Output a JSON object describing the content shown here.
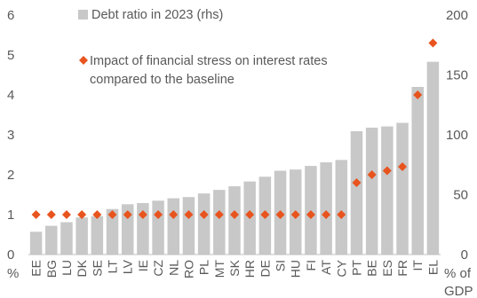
{
  "chart_data": {
    "type": "bar",
    "categories": [
      "EE",
      "BG",
      "LU",
      "DK",
      "SE",
      "LT",
      "LV",
      "IE",
      "CZ",
      "NL",
      "RO",
      "PL",
      "MT",
      "SK",
      "HR",
      "DE",
      "SI",
      "HU",
      "FI",
      "AT",
      "CY",
      "PT",
      "BE",
      "ES",
      "FR",
      "IT",
      "EL"
    ],
    "series": [
      {
        "name": "Debt ratio in 2023 (rhs)",
        "type": "bar",
        "axis": "right",
        "color": "#c8c8c8",
        "values": [
          19,
          24,
          27,
          31,
          32,
          38,
          42,
          43,
          45,
          47,
          48,
          51,
          54,
          57,
          61,
          65,
          70,
          71,
          74,
          77,
          79,
          103,
          106,
          107,
          110,
          140,
          161
        ]
      },
      {
        "name": "Impact of financial stress on interest rates compared to the baseline",
        "type": "scatter",
        "marker": "diamond",
        "axis": "left",
        "color": "#e8541e",
        "values": [
          1.0,
          1.0,
          1.0,
          1.0,
          1.0,
          1.0,
          1.0,
          1.0,
          1.0,
          1.0,
          1.0,
          1.0,
          1.0,
          1.0,
          1.0,
          1.0,
          1.0,
          1.0,
          1.0,
          1.0,
          1.0,
          1.8,
          2.0,
          2.1,
          2.2,
          4.0,
          5.3
        ]
      }
    ],
    "left_axis": {
      "ticks": [
        "0",
        "1",
        "2",
        "3",
        "4",
        "5",
        "6"
      ],
      "ylim": [
        0,
        6
      ],
      "unit_label": "%"
    },
    "right_axis": {
      "ticks": [
        "0",
        "50",
        "100",
        "150",
        "200"
      ],
      "ylim": [
        0,
        200
      ],
      "unit_label_line1": "% of",
      "unit_label_line2": "GDP"
    },
    "grid": false,
    "legend": {
      "placement": "top-left-inside",
      "bar_entry": "Debt ratio in 2023 (rhs)",
      "marker_entry_line1": "Impact of financial stress on interest rates",
      "marker_entry_line2": "compared to the baseline"
    }
  }
}
